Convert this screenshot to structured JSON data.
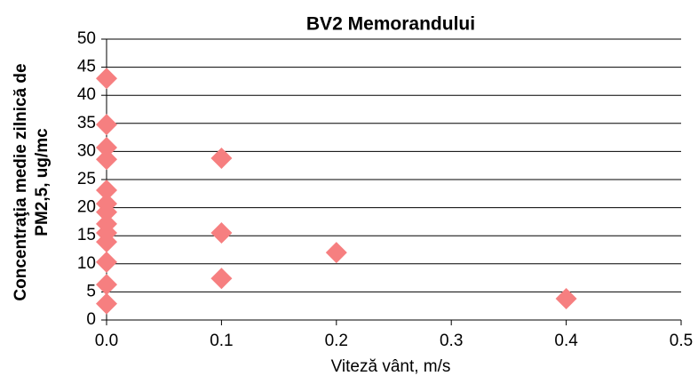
{
  "chart_data": {
    "type": "scatter",
    "title": "BV2 Memorandului",
    "xlabel": "Viteză vânt, m/s",
    "ylabel": [
      "Concentraţia medie zilnică de",
      "PM2,5, ug/mc"
    ],
    "x": [
      0,
      0,
      0,
      0,
      0,
      0,
      0,
      0,
      0,
      0,
      0,
      0,
      0,
      0.1,
      0.1,
      0.1,
      0.2,
      0.4
    ],
    "values": [
      43,
      34.8,
      30.7,
      28.6,
      23.1,
      20.7,
      19.2,
      17.1,
      15.5,
      13.9,
      10.3,
      6.3,
      2.9,
      28.8,
      15.5,
      7.4,
      12,
      3.8
    ],
    "color": "#f67f80",
    "xlim": [
      0,
      0.5
    ],
    "xticks": [
      {
        "value": 0,
        "label": "0.0"
      },
      0.1,
      0.2,
      0.3,
      0.4,
      0.5
    ],
    "ylim": [
      0,
      50
    ],
    "yticks": [
      0,
      5,
      10,
      15,
      20,
      25,
      30,
      35,
      40,
      45,
      50
    ],
    "grid": true
  }
}
